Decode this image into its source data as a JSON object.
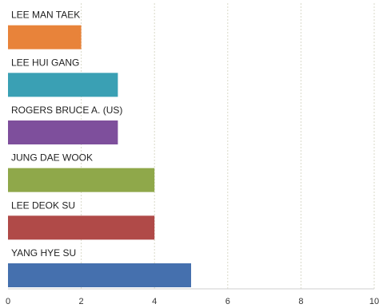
{
  "chart_data": {
    "type": "bar",
    "orientation": "horizontal",
    "title": "",
    "xlabel": "",
    "ylabel": "",
    "categories": [
      "LEE MAN TAEK",
      "LEE HUI GANG",
      "ROGERS BRUCE A. (US)",
      "JUNG DAE WOOK",
      "LEE DEOK SU",
      "YANG HYE SU"
    ],
    "values": [
      2,
      3,
      3,
      4,
      4,
      5
    ],
    "colors": [
      "#e8833a",
      "#3aa0b4",
      "#7e4f9c",
      "#8fa84a",
      "#b04a48",
      "#4570ae"
    ],
    "xlim": [
      0,
      10
    ],
    "xticks": [
      0,
      2,
      4,
      6,
      8,
      10
    ],
    "grid": true,
    "legend": "none"
  }
}
